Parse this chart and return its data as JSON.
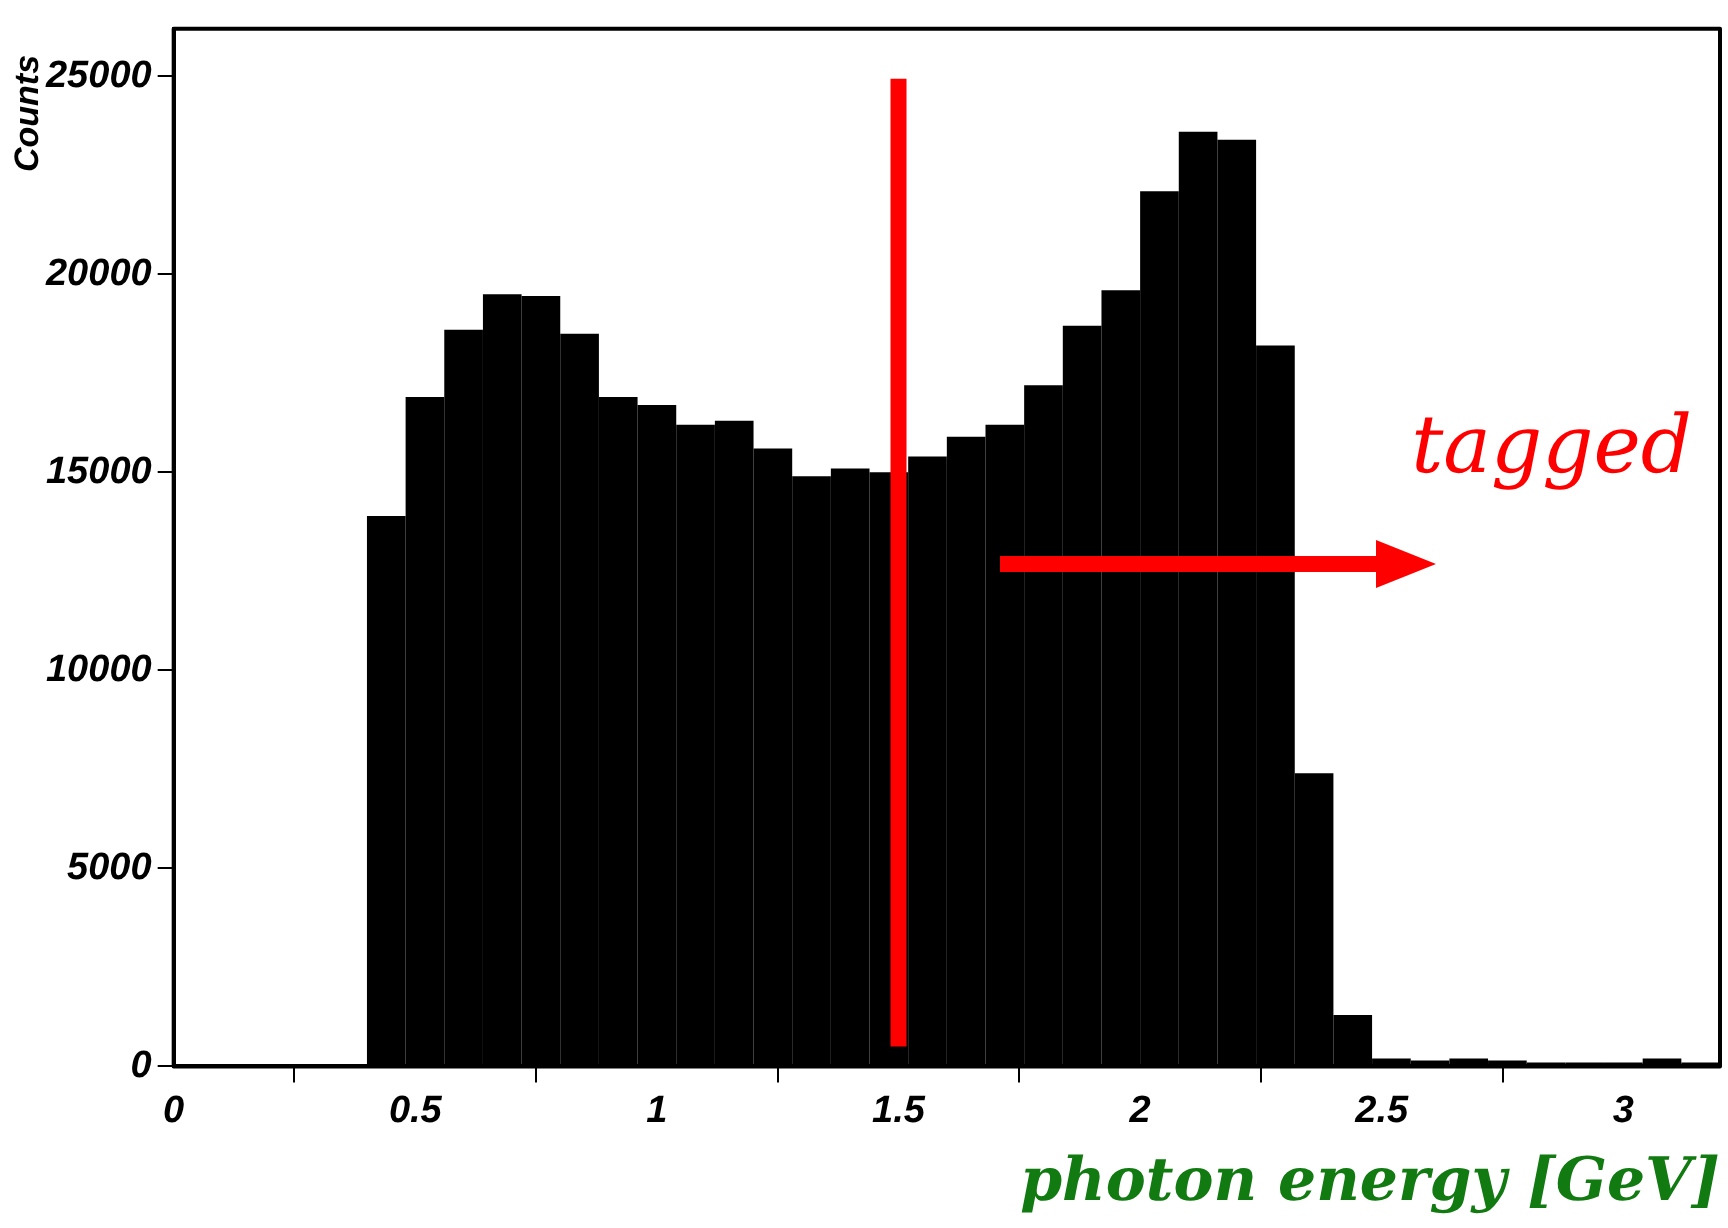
{
  "chart_data": {
    "type": "histogram",
    "xlabel": "photon energy [GeV]",
    "ylabel": "Counts",
    "bins": [
      0,
      0.08,
      0.16,
      0.24,
      0.32,
      0.4,
      0.48,
      0.56,
      0.64,
      0.72,
      0.8,
      0.88,
      0.96,
      1.04,
      1.12,
      1.2,
      1.28,
      1.36,
      1.44,
      1.52,
      1.6,
      1.68,
      1.76,
      1.84,
      1.92,
      2.0,
      2.08,
      2.16,
      2.24,
      2.32,
      2.4,
      2.48,
      2.56,
      2.64,
      2.72,
      2.8,
      2.88,
      2.96,
      3.04,
      3.12,
      3.2
    ],
    "values": [
      0,
      0,
      0,
      0,
      0,
      13900,
      16900,
      18600,
      19500,
      19450,
      18500,
      16900,
      16700,
      16200,
      16300,
      15600,
      14900,
      15100,
      15000,
      15400,
      15900,
      16200,
      17200,
      18700,
      19600,
      22100,
      23600,
      23400,
      18200,
      7400,
      1300,
      200,
      150,
      200,
      150,
      100,
      100,
      100,
      200,
      100
    ],
    "color": "#000000",
    "xlim": [
      0,
      3.2
    ],
    "xticks": [
      0,
      0.5,
      1,
      1.5,
      2,
      2.5,
      3
    ],
    "ylim": [
      0,
      26200
    ],
    "yticks": [
      0,
      5000,
      10000,
      15000,
      20000,
      25000
    ],
    "grid": false,
    "legend": false,
    "ref_lines": [
      {
        "axis": "x",
        "value": 1.5,
        "color": "#ff0000"
      }
    ],
    "annotations": [
      "tagged"
    ]
  }
}
